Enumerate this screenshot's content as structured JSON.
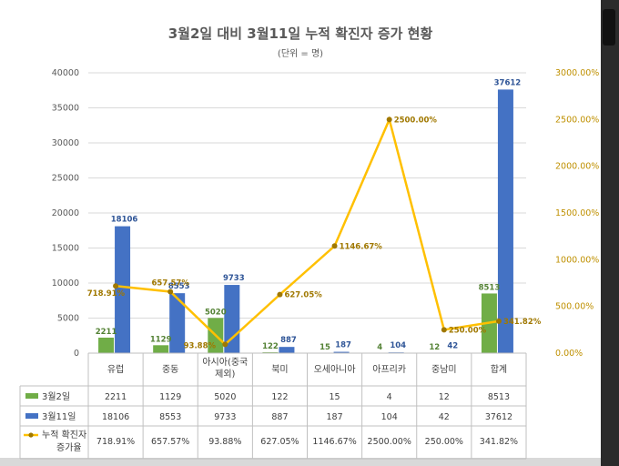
{
  "chart_data": {
    "type": "bar",
    "title": "3월2일 대비 3월11일 누적 확진자 증가 현황",
    "subtitle": "(단위 = 명)",
    "categories": [
      [
        "유럽"
      ],
      [
        "중동"
      ],
      [
        "아시아(중국",
        "제외)"
      ],
      [
        "북미"
      ],
      [
        "오세아니아"
      ],
      [
        "아프리카"
      ],
      [
        "중남미"
      ],
      [
        "합계"
      ]
    ],
    "ylim": [
      0,
      40000
    ],
    "yticks": [
      0,
      5000,
      10000,
      15000,
      20000,
      25000,
      30000,
      35000,
      40000
    ],
    "y2lim": [
      0,
      3000
    ],
    "y2ticks": [
      "0.00%",
      "500.00%",
      "1000.00%",
      "1500.00%",
      "2000.00%",
      "2500.00%",
      "3000.00%"
    ],
    "series": [
      {
        "name": "3월2일",
        "kind": "bar",
        "color": "#70ad47",
        "values": [
          2211,
          1129,
          5020,
          122,
          15,
          4,
          12,
          8513
        ],
        "cells": [
          "2211",
          "1129",
          "5020",
          "122",
          "15",
          "4",
          "12",
          "8513"
        ]
      },
      {
        "name": "3월11일",
        "kind": "bar",
        "color": "#4472c4",
        "values": [
          18106,
          8553,
          9733,
          887,
          187,
          104,
          42,
          37612
        ],
        "cells": [
          "18106",
          "8553",
          "9733",
          "887",
          "187",
          "104",
          "42",
          "37612"
        ]
      },
      {
        "name": [
          "누적 확진자",
          "증가율"
        ],
        "kind": "line",
        "axis": "right",
        "color": "#ffc000",
        "values": [
          718.91,
          657.57,
          93.88,
          627.05,
          1146.67,
          2500.0,
          250.0,
          341.82
        ],
        "cells": [
          "718.91%",
          "657.57%",
          "93.88%",
          "627.05%",
          "1146.67%",
          "2500.00%",
          "250.00%",
          "341.82%"
        ]
      }
    ],
    "grid": true,
    "legend": "table"
  }
}
